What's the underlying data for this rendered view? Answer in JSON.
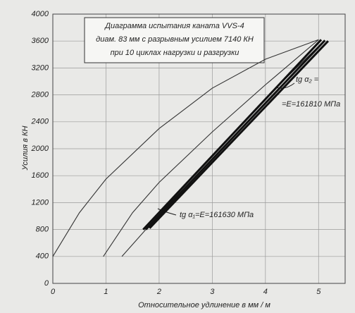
{
  "chart_data": {
    "type": "line",
    "title_lines": [
      "Диаграмма испытания каната VVS-4",
      "диам. 83 мм с разрывным усилием 7140 КН",
      "при 10 циклах нагрузки и разгрузки"
    ],
    "x_label": "Относительное удлинение в мм / м",
    "y_label": "Усилия в КН",
    "annotations": [
      "tg α₂ =",
      "=E=161810 МПа",
      "tg α₁=E=161630 МПа"
    ],
    "xlim": [
      0,
      5.5
    ],
    "ylim": [
      0,
      4000
    ],
    "xticks": [
      0,
      1,
      2,
      3,
      4,
      5
    ],
    "yticks": [
      0,
      400,
      800,
      1200,
      1600,
      2000,
      2400,
      2800,
      3200,
      3600,
      4000
    ],
    "grid": true,
    "series": [
      {
        "color": "#333333",
        "x": [
          0,
          0.5,
          1,
          2,
          3,
          4,
          5
        ],
        "values": [
          400,
          1050,
          1550,
          2300,
          2900,
          3330,
          3620
        ]
      },
      {
        "color": "#333333",
        "x": [
          0.95,
          1.5,
          2,
          3,
          4,
          5
        ],
        "values": [
          400,
          1050,
          1500,
          2250,
          2950,
          3620
        ]
      },
      {
        "color": "#333333",
        "x": [
          1.3,
          2.2,
          3,
          4,
          5.1
        ],
        "values": [
          400,
          1200,
          1900,
          2750,
          3600
        ]
      },
      {
        "color": "#111111",
        "x": [
          1.7,
          5.05
        ],
        "values": [
          800,
          3620
        ]
      },
      {
        "color": "#111111",
        "x": [
          1.75,
          5.12
        ],
        "values": [
          800,
          3610
        ]
      },
      {
        "color": "#111111",
        "x": [
          1.82,
          5.18
        ],
        "values": [
          820,
          3600
        ]
      }
    ]
  }
}
